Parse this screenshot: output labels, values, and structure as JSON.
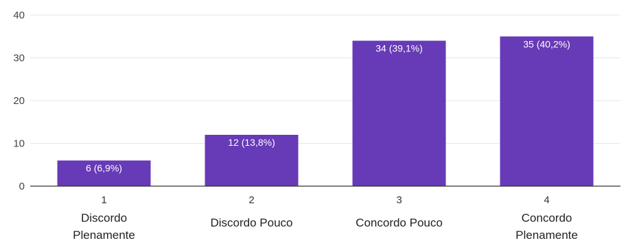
{
  "chart_data": {
    "type": "bar",
    "categories": [
      "1",
      "2",
      "3",
      "4"
    ],
    "category_labels": [
      [
        "Discordo",
        "Plenamente"
      ],
      [
        "Discordo Pouco"
      ],
      [
        "Concordo Pouco"
      ],
      [
        "Concordo",
        "Plenamente"
      ]
    ],
    "values": [
      6,
      12,
      34,
      35
    ],
    "data_labels": [
      "6 (6,9%)",
      "12 (13,8%)",
      "34 (39,1%)",
      "35 (40,2%)"
    ],
    "yticks": [
      "0",
      "10",
      "20",
      "30",
      "40"
    ],
    "ylim": [
      0,
      40
    ],
    "grid": true,
    "bar_color": "#673ab7"
  }
}
